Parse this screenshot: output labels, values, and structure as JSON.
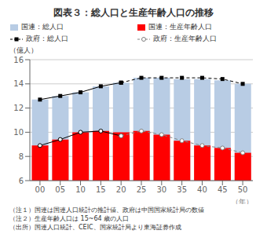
{
  "chart_data": {
    "type": "bar",
    "title": "図表３：総人口と生産年齢人口の推移",
    "ylabel": "（億人）",
    "xlabel": "（年）",
    "categories": [
      "00",
      "05",
      "10",
      "15",
      "20",
      "25",
      "30",
      "35",
      "40",
      "45",
      "50"
    ],
    "series": [
      {
        "name": "国連：総人口",
        "type": "bar",
        "color": "#b8cce4",
        "values": [
          12.7,
          13.0,
          13.3,
          13.8,
          14.1,
          14.5,
          14.5,
          14.4,
          14.4,
          14.3,
          14.0
        ]
      },
      {
        "name": "国連：生産年齢人口",
        "type": "bar",
        "color": "#ff0000",
        "values": [
          8.9,
          9.4,
          10.0,
          10.1,
          10.0,
          null,
          null,
          null,
          null,
          null,
          null
        ]
      },
      {
        "type": "bar",
        "color": "#ff0000",
        "values": [
          null,
          null,
          null,
          null,
          9.7,
          10.1,
          9.8,
          9.3,
          8.9,
          8.7,
          8.3
        ]
      },
      {
        "type": "line",
        "color": "#000000",
        "marker": "square",
        "line_style": "solid",
        "values": [
          12.7,
          13.0,
          13.3,
          13.8,
          14.1,
          null,
          null,
          null,
          null,
          null,
          null
        ]
      },
      {
        "name": "政府：総人口",
        "type": "line",
        "color": "#000000",
        "marker": "square",
        "line_style": "dashed",
        "values": [
          null,
          null,
          null,
          null,
          14.1,
          14.5,
          14.5,
          14.5,
          14.5,
          14.4,
          14.0
        ]
      },
      {
        "type": "line",
        "color": "#000000",
        "marker": "circle",
        "line_style": "solid",
        "values": [
          8.9,
          9.4,
          10.0,
          10.1,
          9.7,
          null,
          null,
          null,
          null,
          null,
          null
        ]
      },
      {
        "name": "政府：生産年齢人口",
        "type": "line",
        "color": "#808080",
        "marker": "circle",
        "line_style": "dashed",
        "values": [
          null,
          null,
          null,
          null,
          9.7,
          10.1,
          9.8,
          9.3,
          8.9,
          8.7,
          8.3
        ]
      }
    ],
    "ylim": [
      6,
      16
    ],
    "yticks": [
      6,
      8,
      10,
      12,
      14,
      16
    ],
    "grid": true,
    "legend": "upper left",
    "annotations": [
      "（注１）国連は国連人口統計の推計値、政府は中国国家統計局の数値",
      "（注２）生産年齢人口は 15~64 歳の人口",
      "（出所）国連人口統計、CEIC、国家統計局より東海証券作成"
    ]
  }
}
